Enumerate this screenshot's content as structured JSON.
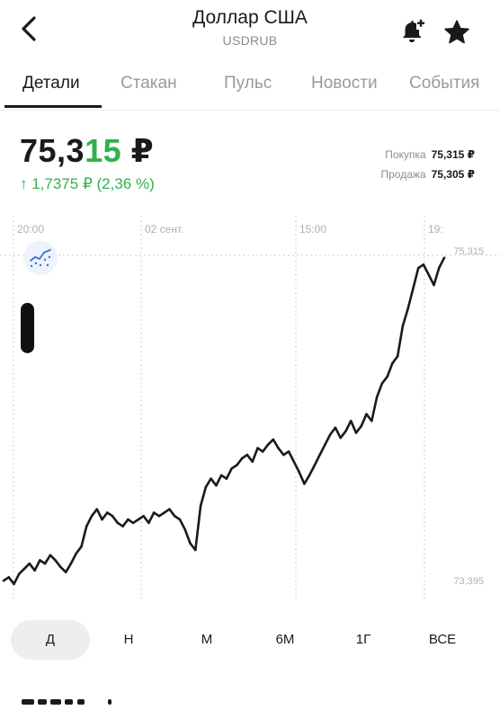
{
  "header": {
    "title": "Доллар США",
    "ticker": "USDRUB",
    "back_icon": "back-chevron-icon",
    "alert_icon": "bell-plus-icon",
    "favorite_icon": "star-icon"
  },
  "tabs": [
    {
      "label": "Детали",
      "active": true
    },
    {
      "label": "Стакан",
      "active": false
    },
    {
      "label": "Пульс",
      "active": false
    },
    {
      "label": "Новости",
      "active": false
    },
    {
      "label": "События",
      "active": false
    }
  ],
  "price": {
    "main": "75,3",
    "highlight": "15",
    "currency": " ₽",
    "change": "↑ 1,7375 ₽ (2,36 %)",
    "buy_label": "Покупка",
    "buy_value": "75,315 ₽",
    "sell_label": "Продажа",
    "sell_value": "75,305 ₽"
  },
  "colors": {
    "positive": "#2fb24c",
    "line": "#1a1a1a",
    "grid": "#cfcfcf",
    "muted": "#8c8c8c"
  },
  "chart_data": {
    "type": "line",
    "x_tick_labels": [
      "20:00",
      "02 сент.",
      "15:00",
      "19:"
    ],
    "y_labels": {
      "max": "75,315",
      "min": "73,395"
    },
    "ylim": [
      73.395,
      75.315
    ],
    "grid": true,
    "series": [
      {
        "values": [
          73.4,
          73.42,
          73.38,
          73.44,
          73.47,
          73.5,
          73.46,
          73.52,
          73.5,
          73.55,
          73.52,
          73.48,
          73.45,
          73.5,
          73.56,
          73.6,
          73.72,
          73.78,
          73.82,
          73.76,
          73.8,
          73.78,
          73.74,
          73.72,
          73.76,
          73.74,
          73.76,
          73.78,
          73.74,
          73.8,
          73.78,
          73.8,
          73.82,
          73.78,
          73.76,
          73.7,
          73.62,
          73.58,
          73.84,
          73.95,
          74.0,
          73.96,
          74.02,
          74.0,
          74.06,
          74.08,
          74.12,
          74.14,
          74.1,
          74.18,
          74.16,
          74.2,
          74.23,
          74.18,
          74.14,
          74.16,
          74.1,
          74.04,
          73.97,
          74.02,
          74.08,
          74.14,
          74.2,
          74.26,
          74.3,
          74.24,
          74.28,
          74.34,
          74.27,
          74.31,
          74.38,
          74.34,
          74.48,
          74.56,
          74.6,
          74.68,
          74.72,
          74.9,
          75.0,
          75.12,
          75.24,
          75.26,
          75.2,
          75.14,
          75.24,
          75.3
        ]
      }
    ]
  },
  "periods": [
    {
      "label": "Д",
      "active": true
    },
    {
      "label": "Н",
      "active": false
    },
    {
      "label": "М",
      "active": false
    },
    {
      "label": "6М",
      "active": false
    },
    {
      "label": "1Г",
      "active": false
    },
    {
      "label": "ВСЕ",
      "active": false
    }
  ]
}
